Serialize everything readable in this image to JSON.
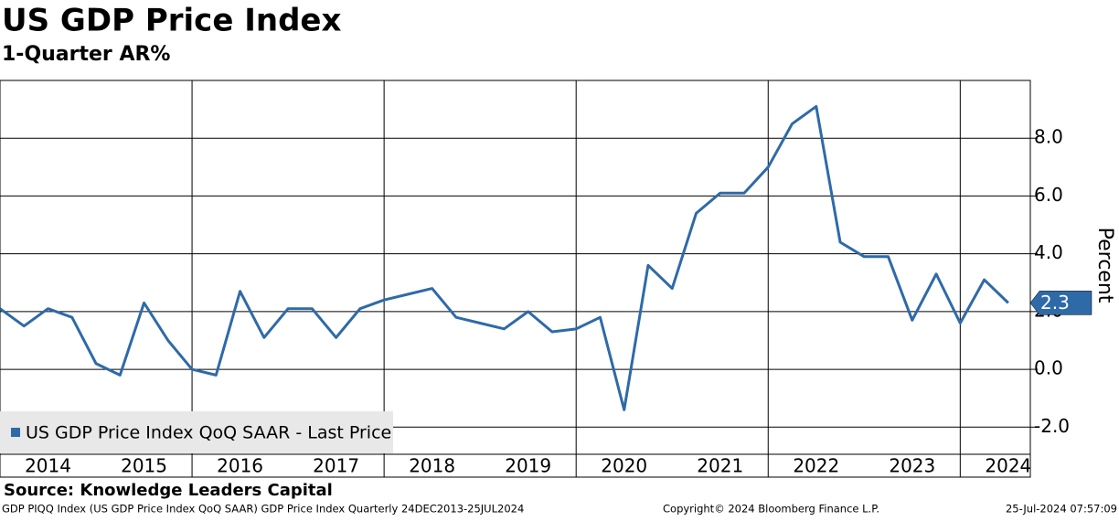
{
  "chart_data": {
    "type": "line",
    "title": "US GDP Price Index",
    "subtitle": "1-Quarter AR%",
    "ylabel": "Percent",
    "source": "Source: Knowledge Leaders Capital",
    "footer_left": "GDP PIQQ Index (US GDP Price Index QoQ SAAR) GDP Price Index  Quarterly 24DEC2013-25JUL2024",
    "footer_center": "Copyright© 2024 Bloomberg Finance L.P.",
    "footer_right": "25-Jul-2024 07:57:09",
    "last_price_label": "2.3",
    "x": [
      2014,
      2014.25,
      2014.5,
      2014.75,
      2015,
      2015.25,
      2015.5,
      2015.75,
      2016,
      2016.25,
      2016.5,
      2016.75,
      2017,
      2017.25,
      2017.5,
      2017.75,
      2018,
      2018.25,
      2018.5,
      2018.75,
      2019,
      2019.25,
      2019.5,
      2019.75,
      2020,
      2020.25,
      2020.5,
      2020.75,
      2021,
      2021.25,
      2021.5,
      2021.75,
      2022,
      2022.25,
      2022.5,
      2022.75,
      2023,
      2023.25,
      2023.5,
      2023.75,
      2024,
      2024.25,
      2024.5
    ],
    "series": [
      {
        "name": "US GDP Price Index QoQ SAAR - Last Price",
        "color": "#2e6aa8",
        "values": [
          2.1,
          1.5,
          2.1,
          1.8,
          0.2,
          -0.2,
          2.3,
          1.0,
          0.0,
          -0.2,
          2.7,
          1.1,
          2.1,
          2.1,
          1.1,
          2.1,
          2.4,
          2.6,
          2.8,
          1.8,
          1.6,
          1.4,
          2.0,
          1.3,
          1.4,
          1.8,
          -1.4,
          3.6,
          2.8,
          5.4,
          6.1,
          6.1,
          7.0,
          8.5,
          9.1,
          4.4,
          3.9,
          3.9,
          1.7,
          3.3,
          1.6,
          3.1,
          2.3
        ]
      }
    ],
    "xlim": [
      2014,
      2024.73
    ],
    "xticks": [
      {
        "value": 2014.5,
        "label": "2014"
      },
      {
        "value": 2015.5,
        "label": "2015"
      },
      {
        "value": 2016.5,
        "label": "2016"
      },
      {
        "value": 2017.5,
        "label": "2017"
      },
      {
        "value": 2018.5,
        "label": "2018"
      },
      {
        "value": 2019.5,
        "label": "2019"
      },
      {
        "value": 2020.5,
        "label": "2020"
      },
      {
        "value": 2021.5,
        "label": "2021"
      },
      {
        "value": 2022.5,
        "label": "2022"
      },
      {
        "value": 2023.5,
        "label": "2023"
      },
      {
        "value": 2024.5,
        "label": "2024"
      }
    ],
    "xgrid": [
      2016,
      2018,
      2020,
      2022,
      2024
    ],
    "ylim": [
      -2.94,
      10
    ],
    "yticks": [
      {
        "value": -2,
        "label": "-2.0"
      },
      {
        "value": 0,
        "label": "0.0"
      },
      {
        "value": 2,
        "label": "2.0"
      },
      {
        "value": 4,
        "label": "4.0"
      },
      {
        "value": 6,
        "label": "6.0"
      },
      {
        "value": 8,
        "label": "8.0"
      }
    ],
    "grid": true
  }
}
